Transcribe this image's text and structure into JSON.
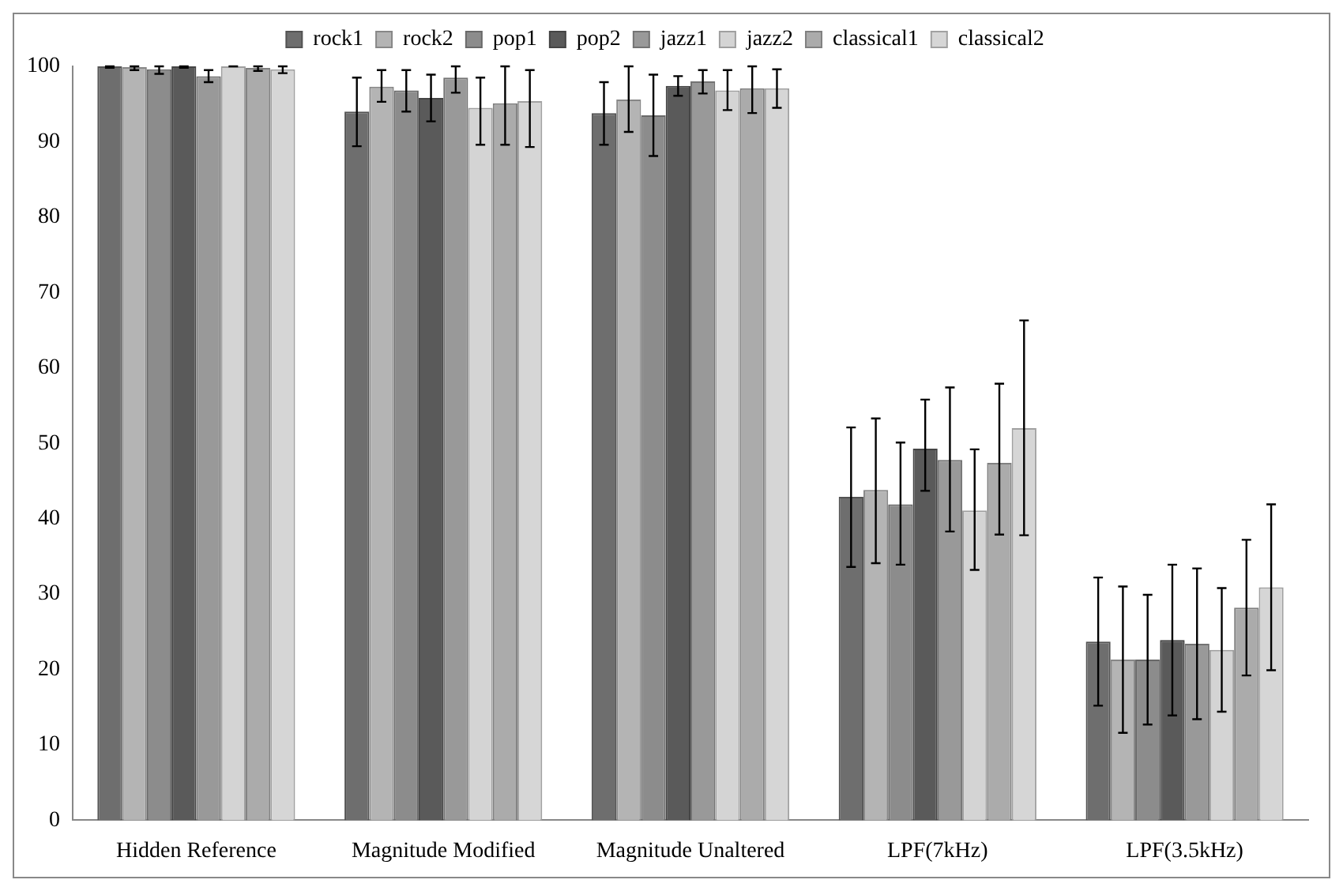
{
  "chart_data": {
    "type": "bar",
    "categories": [
      "Hidden Reference",
      "Magnitude Modified",
      "Magnitude Unaltered",
      "LPF(7kHz)",
      "LPF(3.5kHz)"
    ],
    "ylim": [
      0,
      100
    ],
    "yticks": [
      0,
      10,
      20,
      30,
      40,
      50,
      60,
      70,
      80,
      90,
      100
    ],
    "grid": false,
    "legend": "top",
    "series": [
      {
        "name": "rock1",
        "color": "#6e6e6e",
        "values": [
          100,
          94.0,
          93.8,
          42.9,
          23.7
        ],
        "errors": [
          [
            99.8,
            100
          ],
          [
            89.4,
            98.5
          ],
          [
            89.6,
            97.9
          ],
          [
            33.6,
            52.1
          ],
          [
            15.2,
            32.2
          ]
        ]
      },
      {
        "name": "rock2",
        "color": "#b4b4b4",
        "values": [
          99.9,
          97.3,
          95.6,
          43.8,
          21.3
        ],
        "errors": [
          [
            99.5,
            100
          ],
          [
            95.3,
            99.5
          ],
          [
            91.3,
            100
          ],
          [
            34.1,
            53.3
          ],
          [
            11.6,
            31.0
          ]
        ]
      },
      {
        "name": "pop1",
        "color": "#8c8c8c",
        "values": [
          99.6,
          96.8,
          93.5,
          41.9,
          21.3
        ],
        "errors": [
          [
            99.0,
            100
          ],
          [
            94.0,
            99.5
          ],
          [
            88.1,
            98.9
          ],
          [
            33.9,
            50.1
          ],
          [
            12.7,
            29.9
          ]
        ]
      },
      {
        "name": "pop2",
        "color": "#5a5a5a",
        "values": [
          100,
          95.8,
          97.4,
          49.3,
          23.9
        ],
        "errors": [
          [
            99.8,
            100
          ],
          [
            92.7,
            98.9
          ],
          [
            96.1,
            98.7
          ],
          [
            43.7,
            55.8
          ],
          [
            13.9,
            33.9
          ]
        ]
      },
      {
        "name": "jazz1",
        "color": "#999999",
        "values": [
          98.7,
          98.5,
          98.0,
          47.8,
          23.4
        ],
        "errors": [
          [
            97.9,
            99.5
          ],
          [
            96.5,
            100
          ],
          [
            96.4,
            99.5
          ],
          [
            38.3,
            57.4
          ],
          [
            13.4,
            33.4
          ]
        ]
      },
      {
        "name": "jazz2",
        "color": "#d4d4d4",
        "values": [
          100,
          94.5,
          96.8,
          41.1,
          22.6
        ],
        "errors": [
          [
            100,
            100
          ],
          [
            89.6,
            98.5
          ],
          [
            94.2,
            99.5
          ],
          [
            33.2,
            49.2
          ],
          [
            14.4,
            30.8
          ]
        ]
      },
      {
        "name": "classical1",
        "color": "#ababab",
        "values": [
          99.8,
          95.1,
          97.1,
          47.4,
          28.2
        ],
        "errors": [
          [
            99.4,
            100
          ],
          [
            89.6,
            100
          ],
          [
            93.8,
            100
          ],
          [
            37.9,
            57.9
          ],
          [
            19.2,
            37.2
          ]
        ]
      },
      {
        "name": "classical2",
        "color": "#d6d6d6",
        "values": [
          99.6,
          95.4,
          97.1,
          52.0,
          30.9
        ],
        "errors": [
          [
            99.1,
            100
          ],
          [
            89.3,
            99.5
          ],
          [
            94.5,
            99.6
          ],
          [
            37.8,
            66.3
          ],
          [
            19.9,
            41.9
          ]
        ]
      }
    ]
  }
}
